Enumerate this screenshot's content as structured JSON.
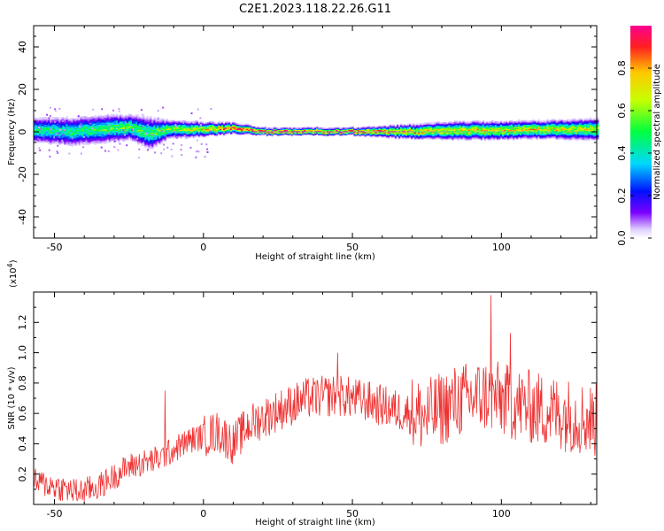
{
  "title": "C2E1.2023.118.22.26.G11",
  "chart_data": [
    {
      "type": "heatmap",
      "xlabel": "Height of straight line (km)",
      "ylabel": "Frequency (Hz)",
      "xlim": [
        -57,
        132
      ],
      "ylim": [
        -50,
        50
      ],
      "xticks": [
        "-50",
        "0",
        "50",
        "100"
      ],
      "yticks": [
        "-40",
        "-20",
        "0",
        "20",
        "40"
      ],
      "colorbar": {
        "label": "Normalized spectral amplitude",
        "range": [
          0.0,
          1.0
        ],
        "ticks": [
          "0.0",
          "0.2",
          "0.4",
          "0.6",
          "0.8"
        ],
        "colormap": "rainbow"
      },
      "ridge": [
        {
          "x": -57,
          "y": 0.5,
          "amp": 0.45,
          "spread": 3.5
        },
        {
          "x": -45,
          "y": 0.0,
          "amp": 0.45,
          "spread": 4.0
        },
        {
          "x": -35,
          "y": 1.0,
          "amp": 0.5,
          "spread": 4.0
        },
        {
          "x": -25,
          "y": 2.0,
          "amp": 0.55,
          "spread": 3.5
        },
        {
          "x": -18,
          "y": -1.0,
          "amp": 0.5,
          "spread": 4.5
        },
        {
          "x": -12,
          "y": 1.0,
          "amp": 0.6,
          "spread": 2.5
        },
        {
          "x": 0,
          "y": 1.0,
          "amp": 0.7,
          "spread": 2.0
        },
        {
          "x": 10,
          "y": 1.5,
          "amp": 0.85,
          "spread": 1.5
        },
        {
          "x": 20,
          "y": 0.0,
          "amp": 0.95,
          "spread": 1.0
        },
        {
          "x": 35,
          "y": 0.0,
          "amp": 0.95,
          "spread": 1.0
        },
        {
          "x": 50,
          "y": 0.0,
          "amp": 0.95,
          "spread": 1.0
        },
        {
          "x": 60,
          "y": 0.0,
          "amp": 0.85,
          "spread": 1.5
        },
        {
          "x": 70,
          "y": 0.0,
          "amp": 0.75,
          "spread": 2.0
        },
        {
          "x": 85,
          "y": 0.5,
          "amp": 0.7,
          "spread": 2.5
        },
        {
          "x": 100,
          "y": 0.5,
          "amp": 0.7,
          "spread": 2.5
        },
        {
          "x": 115,
          "y": 1.0,
          "amp": 0.7,
          "spread": 2.5
        },
        {
          "x": 132,
          "y": 1.0,
          "amp": 0.65,
          "spread": 3.0
        }
      ]
    },
    {
      "type": "line",
      "xlabel": "Height of straight line (km)",
      "ylabel": "SNR (10 * v/v)",
      "scale_label": "(x10",
      "scale_exp": "4",
      "scale_close": ")",
      "xlim": [
        -57,
        132
      ],
      "ylim": [
        0.0,
        1.4
      ],
      "xticks": [
        "-50",
        "0",
        "50",
        "100"
      ],
      "yticks": [
        "0.2",
        "0.4",
        "0.6",
        "0.8",
        "1.0",
        "1.2"
      ],
      "color": "#ee3333",
      "trend": [
        {
          "x": -57,
          "y": 0.15
        },
        {
          "x": -50,
          "y": 0.12
        },
        {
          "x": -42,
          "y": 0.08
        },
        {
          "x": -35,
          "y": 0.12
        },
        {
          "x": -25,
          "y": 0.25
        },
        {
          "x": -15,
          "y": 0.3
        },
        {
          "x": -5,
          "y": 0.42
        },
        {
          "x": 5,
          "y": 0.48
        },
        {
          "x": 10,
          "y": 0.4
        },
        {
          "x": 15,
          "y": 0.52
        },
        {
          "x": 25,
          "y": 0.62
        },
        {
          "x": 35,
          "y": 0.7
        },
        {
          "x": 45,
          "y": 0.72
        },
        {
          "x": 55,
          "y": 0.68
        },
        {
          "x": 65,
          "y": 0.62
        },
        {
          "x": 75,
          "y": 0.58
        },
        {
          "x": 85,
          "y": 0.68
        },
        {
          "x": 95,
          "y": 0.72
        },
        {
          "x": 105,
          "y": 0.66
        },
        {
          "x": 115,
          "y": 0.62
        },
        {
          "x": 125,
          "y": 0.58
        },
        {
          "x": 132,
          "y": 0.55
        }
      ],
      "peaks": [
        {
          "x": 96.5,
          "y": 1.38
        },
        {
          "x": 103,
          "y": 1.13
        },
        {
          "x": 45,
          "y": 1.0
        },
        {
          "x": -13,
          "y": 0.75
        }
      ]
    }
  ]
}
